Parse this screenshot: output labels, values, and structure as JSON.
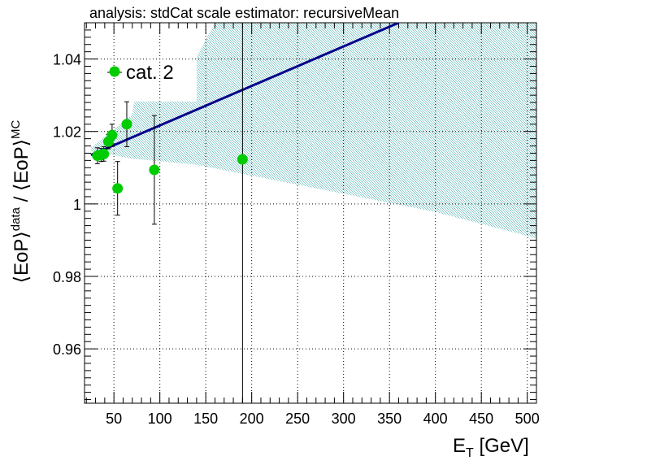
{
  "chart_data": {
    "type": "scatter",
    "title": "analysis: stdCat   scale estimator: recursiveMean",
    "xlabel": {
      "base": "E",
      "sub": "T",
      "suffix": " [GeV]"
    },
    "ylabel": {
      "part1": "⟨EoP⟩",
      "sup1": "data",
      "part2": " / ⟨EoP⟩",
      "sup2": "MC"
    },
    "xlim": [
      18,
      510
    ],
    "ylim": [
      0.945,
      1.05
    ],
    "xticks": [
      50,
      100,
      150,
      200,
      250,
      300,
      350,
      400,
      450,
      500
    ],
    "yticks": [
      0.96,
      0.98,
      1,
      1.02,
      1.04
    ],
    "ytick_labels": [
      "0.96",
      "0.98",
      "1",
      "1.02",
      "1.04"
    ],
    "grid": true,
    "legend_position": "top-left",
    "colors": {
      "points": "#00cc00",
      "fit": "#00008b",
      "band": "#7fc7c7"
    },
    "series": [
      {
        "name": "cat. 2",
        "points": [
          {
            "x": 32,
            "y": 1.0133,
            "err": 0.0022
          },
          {
            "x": 36,
            "y": 1.0135,
            "err": 0.0018
          },
          {
            "x": 39,
            "y": 1.0138,
            "err": 0.002
          },
          {
            "x": 44,
            "y": 1.0172,
            "err": 0.002
          },
          {
            "x": 48,
            "y": 1.019,
            "err": 0.003
          },
          {
            "x": 54,
            "y": 1.0043,
            "err": 0.0074
          },
          {
            "x": 64,
            "y": 1.022,
            "err": 0.0062
          },
          {
            "x": 94,
            "y": 1.0094,
            "err": 0.015
          },
          {
            "x": 190,
            "y": 1.0123,
            "err": 0.08
          }
        ]
      }
    ],
    "fit_line": {
      "x": [
        25,
        360
      ],
      "y": [
        1.0135,
        1.05
      ]
    },
    "band": {
      "upper": [
        [
          25,
          1.0155
        ],
        [
          70,
          1.0247
        ],
        [
          72,
          1.0283
        ],
        [
          140,
          1.0283
        ],
        [
          140,
          1.0407
        ],
        [
          160,
          1.05
        ],
        [
          510,
          1.05
        ]
      ],
      "lower": [
        [
          510,
          0.9905
        ],
        [
          400,
          0.9978
        ],
        [
          300,
          1.0028
        ],
        [
          200,
          1.0078
        ],
        [
          140,
          1.0108
        ],
        [
          100,
          1.0118
        ],
        [
          72,
          1.0124
        ],
        [
          25,
          1.0145
        ]
      ]
    }
  }
}
